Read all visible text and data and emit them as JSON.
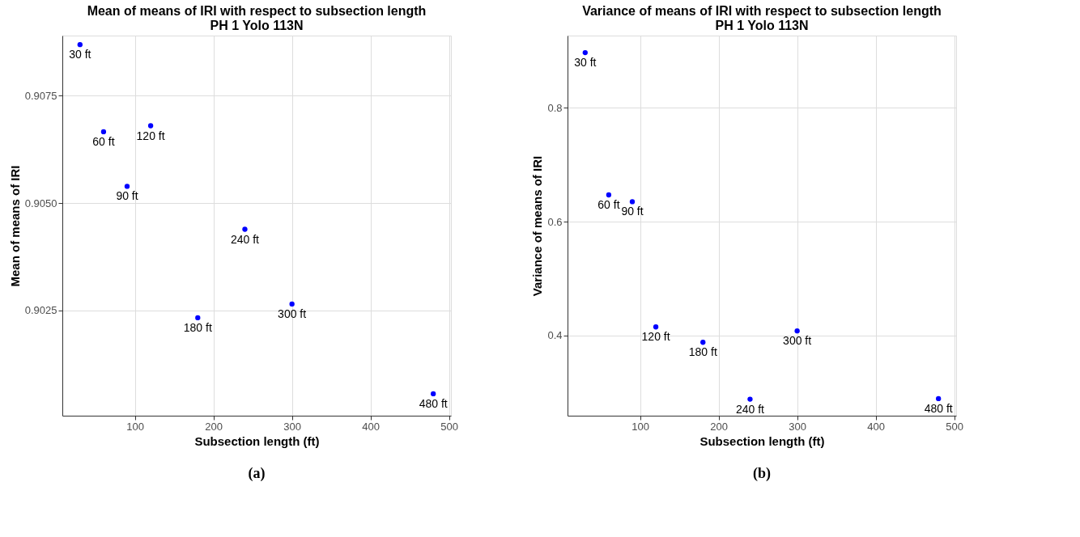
{
  "chart_data": [
    {
      "type": "scatter",
      "title": "Mean of means of IRI with respect to subsection length",
      "subtitle": "PH 1 Yolo 113N",
      "xlabel": "Subsection length (ft)",
      "ylabel": "Mean of means of IRI",
      "x": [
        30,
        60,
        90,
        120,
        180,
        240,
        300,
        480
      ],
      "series": [
        {
          "color": "#0000ff",
          "values": [
            0.90869,
            0.90666,
            0.90539,
            0.9068,
            0.90233,
            0.90439,
            0.90265,
            0.90056
          ]
        }
      ],
      "xlim": [
        7.5,
        502.5
      ],
      "xticks": [
        100,
        200,
        300,
        400,
        500
      ],
      "ylim": [
        0.90005,
        0.9089
      ],
      "yticks": [
        {
          "value": 0.9025,
          "label": "0.9025"
        },
        {
          "value": 0.905,
          "label": "0.9050"
        },
        {
          "value": 0.9075,
          "label": "0.9075"
        }
      ],
      "grid": true,
      "marker": "circle",
      "annotations": [
        {
          "text": "30 ft",
          "x": 30,
          "y": 0.90869
        },
        {
          "text": "60 ft",
          "x": 60,
          "y": 0.90666
        },
        {
          "text": "90 ft",
          "x": 90,
          "y": 0.90539
        },
        {
          "text": "120 ft",
          "x": 120,
          "y": 0.9068
        },
        {
          "text": "180 ft",
          "x": 180,
          "y": 0.90233
        },
        {
          "text": "240 ft",
          "x": 240,
          "y": 0.90439
        },
        {
          "text": "300 ft",
          "x": 300,
          "y": 0.90265
        },
        {
          "text": "480 ft",
          "x": 480,
          "y": 0.90056
        },
        "(a)"
      ]
    },
    {
      "type": "scatter",
      "title": "Variance of means of IRI with respect to subsection length",
      "subtitle": "PH 1 Yolo 113N",
      "xlabel": "Subsection length (ft)",
      "ylabel": "Variance of means of IRI",
      "x": [
        30,
        60,
        90,
        120,
        180,
        240,
        300,
        480
      ],
      "series": [
        {
          "color": "#0000ff",
          "values": [
            0.897,
            0.647,
            0.635,
            0.415,
            0.388,
            0.288,
            0.408,
            0.289
          ]
        }
      ],
      "xlim": [
        7.5,
        502.5
      ],
      "xticks": [
        100,
        200,
        300,
        400,
        500
      ],
      "ylim": [
        0.259,
        0.927
      ],
      "yticks": [
        0.4,
        0.6,
        0.8
      ],
      "grid": true,
      "marker": "circle",
      "annotations": [
        {
          "text": "30 ft",
          "x": 30,
          "y": 0.897
        },
        {
          "text": "60 ft",
          "x": 60,
          "y": 0.647
        },
        {
          "text": "90 ft",
          "x": 90,
          "y": 0.635
        },
        {
          "text": "120 ft",
          "x": 120,
          "y": 0.415
        },
        {
          "text": "180 ft",
          "x": 180,
          "y": 0.388
        },
        {
          "text": "240 ft",
          "x": 240,
          "y": 0.288
        },
        {
          "text": "300 ft",
          "x": 300,
          "y": 0.408
        },
        {
          "text": "480 ft",
          "x": 480,
          "y": 0.289
        },
        "(b)"
      ]
    }
  ]
}
